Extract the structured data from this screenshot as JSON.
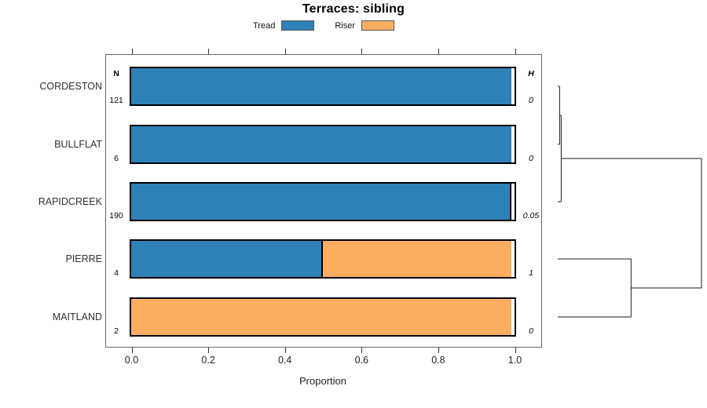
{
  "title": "Terraces: sibling",
  "legend": {
    "items": [
      {
        "label": "Tread",
        "color": "#2E82B8"
      },
      {
        "label": "Riser",
        "color": "#FBAD60"
      }
    ]
  },
  "columns": {
    "n_header": "N",
    "h_header": "H"
  },
  "rows": [
    {
      "label": "CORDESTON",
      "n": "121",
      "h": "0"
    },
    {
      "label": "BULLFLAT",
      "n": "6",
      "h": "0"
    },
    {
      "label": "RAPIDCREEK",
      "n": "190",
      "h": "0.05"
    },
    {
      "label": "PIERRE",
      "n": "4",
      "h": "1"
    },
    {
      "label": "MAITLAND",
      "n": "2",
      "h": "0"
    }
  ],
  "xaxis": {
    "label": "Proportion",
    "ticks": [
      "0.0",
      "0.2",
      "0.4",
      "0.6",
      "0.8",
      "1.0"
    ]
  },
  "chart_data": {
    "type": "bar",
    "orientation": "horizontal",
    "stacked": true,
    "title": "Terraces: sibling",
    "categories": [
      "CORDESTON",
      "BULLFLAT",
      "RAPIDCREEK",
      "PIERRE",
      "MAITLAND"
    ],
    "series": [
      {
        "name": "Tread",
        "color": "#2E82B8",
        "values": [
          1.0,
          1.0,
          0.995,
          0.5,
          0.0
        ]
      },
      {
        "name": "Riser",
        "color": "#FBAD60",
        "values": [
          0.0,
          0.0,
          0.005,
          0.5,
          1.0
        ]
      }
    ],
    "sample_sizes_N": [
      121,
      6,
      190,
      4,
      2
    ],
    "diversity_H": [
      "0",
      "0",
      "0.05",
      "1",
      "0"
    ],
    "xlabel": "Proportion",
    "xlim": [
      0,
      1
    ],
    "xticks": [
      0.0,
      0.2,
      0.4,
      0.6,
      0.8,
      1.0
    ],
    "legend_position": "top",
    "grid": false,
    "dendrogram": {
      "position": "right",
      "leaf_order": [
        "CORDESTON",
        "BULLFLAT",
        "RAPIDCREEK",
        "PIERRE",
        "MAITLAND"
      ],
      "merges": [
        {
          "a": "L0",
          "b": "L1",
          "height": 0.013
        },
        {
          "a": "M0",
          "b": "L2",
          "height": 0.024
        },
        {
          "a": "L3",
          "b": "L4",
          "height": 0.51
        },
        {
          "a": "M1",
          "b": "M2",
          "height": 1.0
        }
      ]
    }
  }
}
